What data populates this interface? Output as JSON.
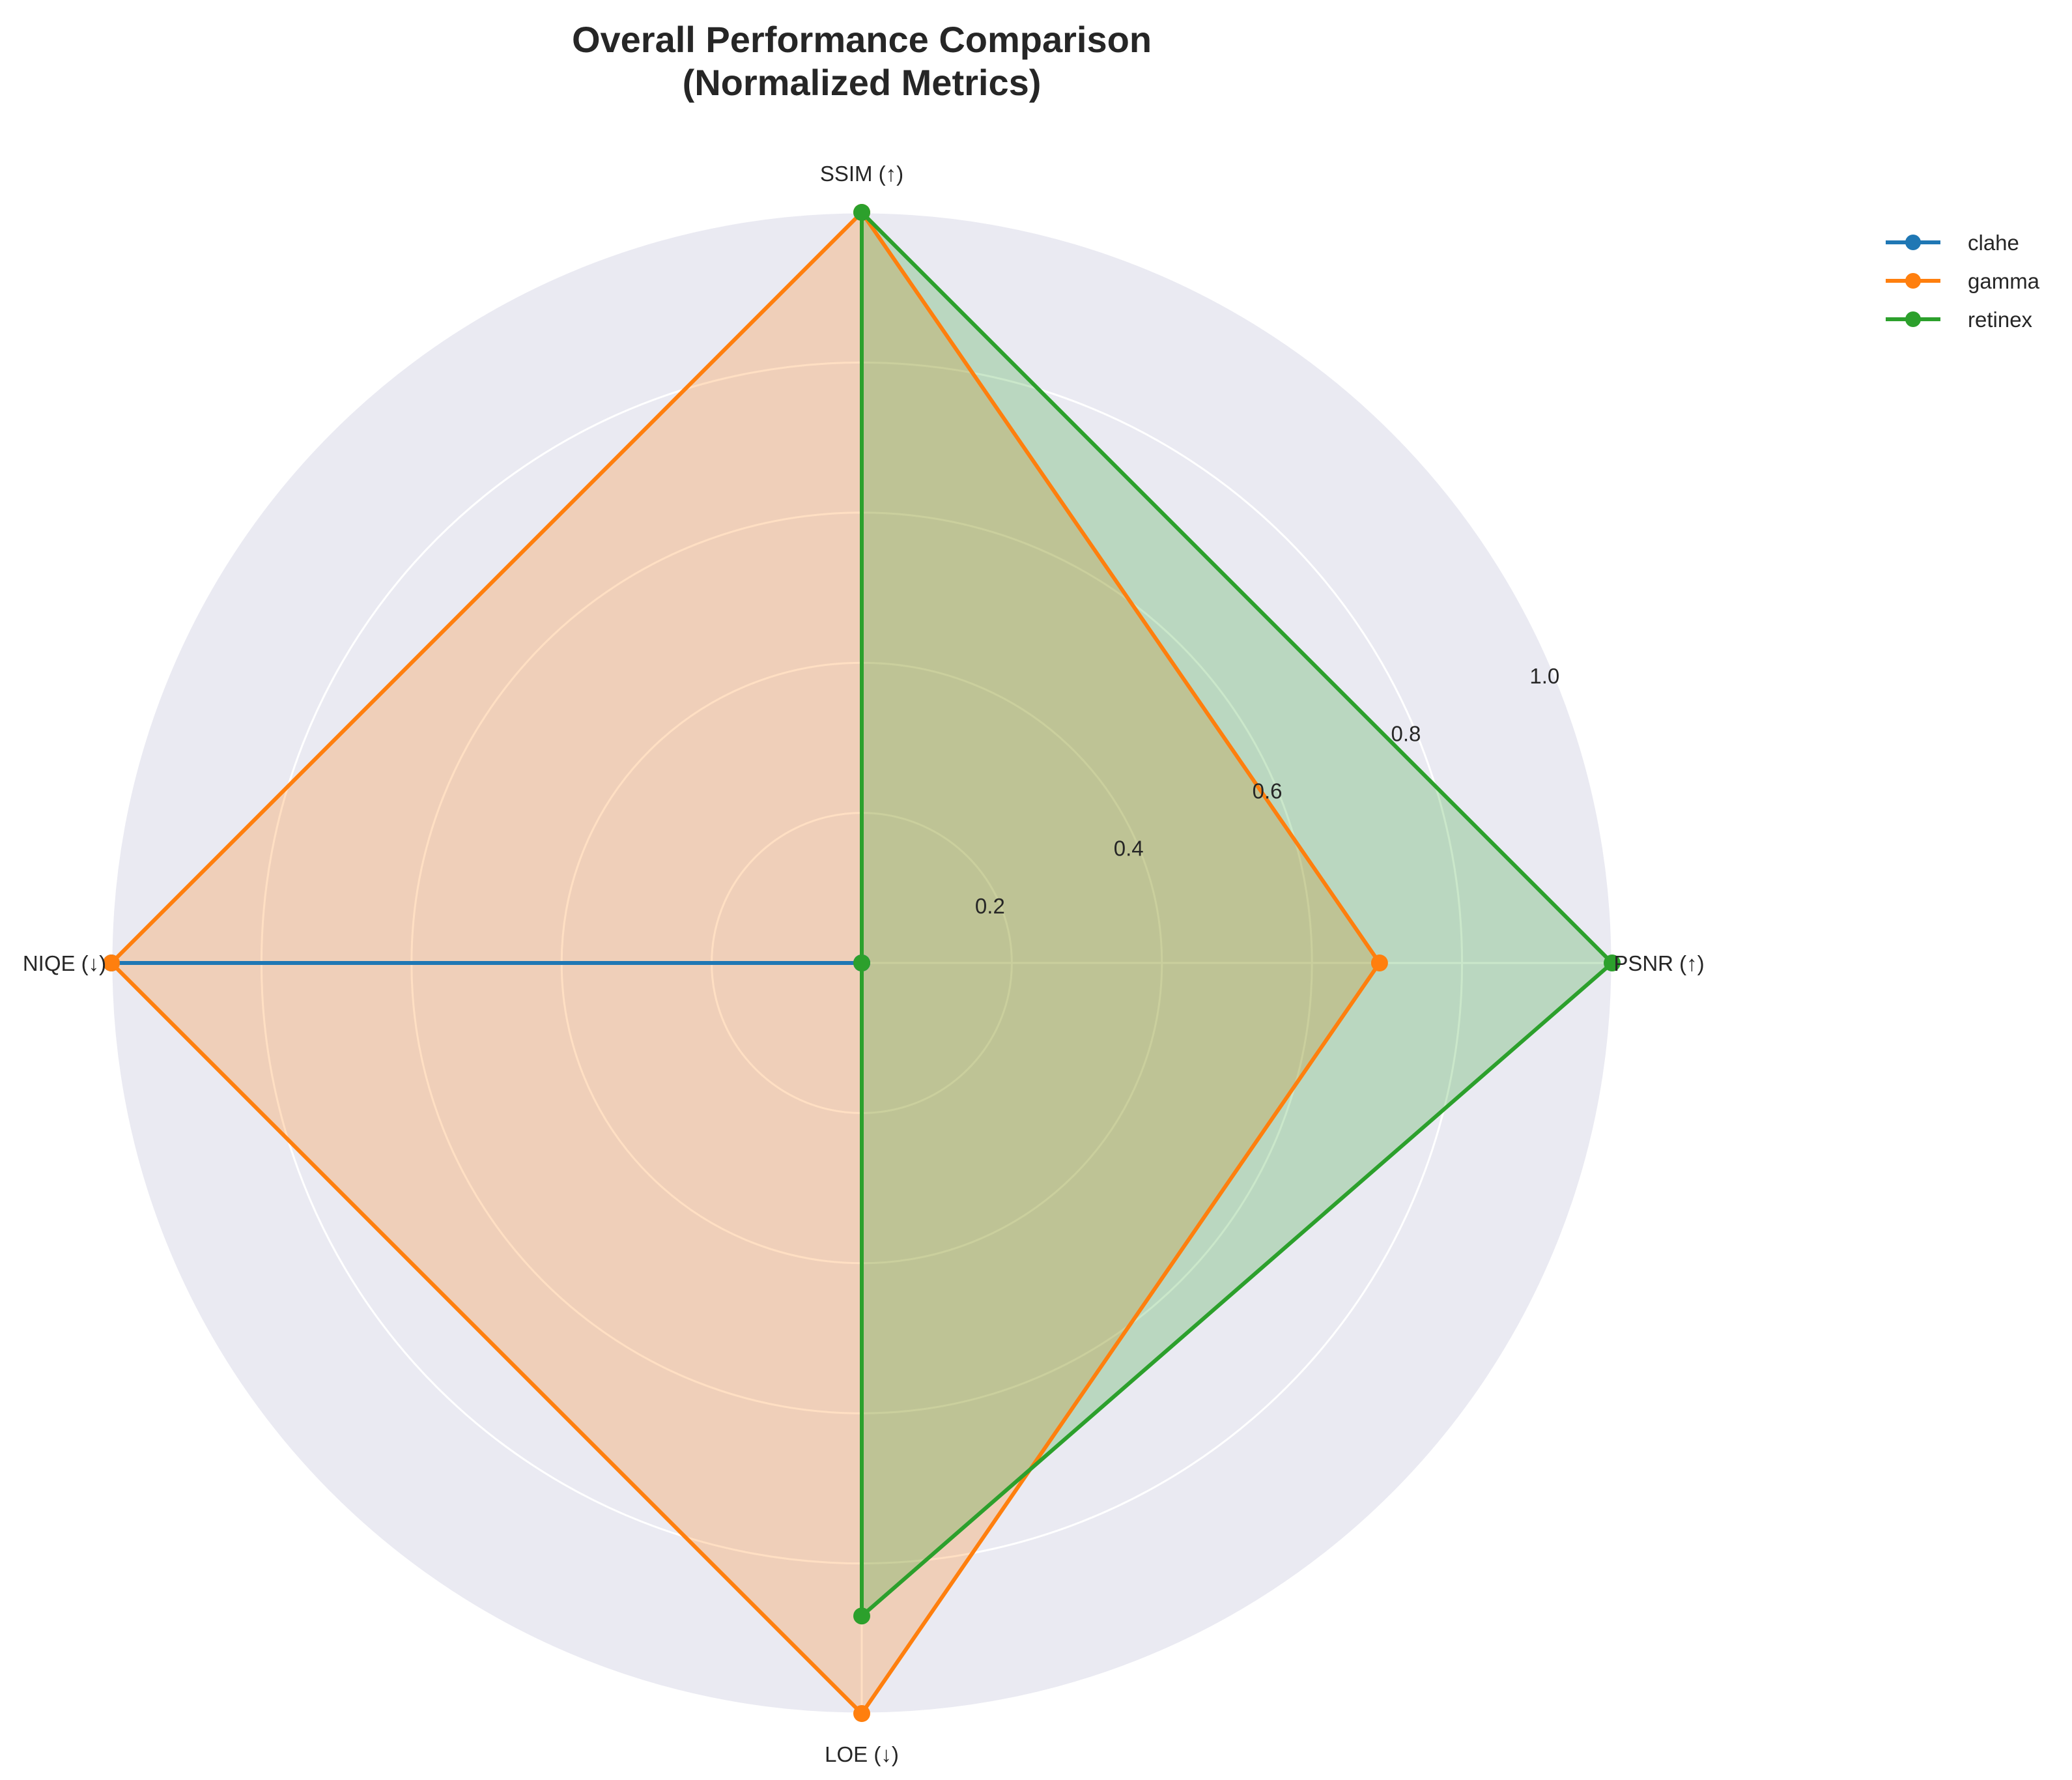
{
  "chart_data": {
    "type": "radar",
    "title": "Overall Performance Comparison\n(Normalized Metrics)",
    "axes": [
      "PSNR (↑)",
      "SSIM (↑)",
      "NIQE (↓)",
      "LOE (↓)"
    ],
    "rlim": [
      0,
      1.0
    ],
    "rticks": [
      0.2,
      0.4,
      0.6,
      0.8,
      1.0
    ],
    "rtick_labels": [
      "0.2",
      "0.4",
      "0.6",
      "0.8",
      "1.0"
    ],
    "grid": true,
    "legend_position": "upper-right-outside",
    "series": [
      {
        "name": "clahe",
        "color": "#1f77b4",
        "values": [
          0.0,
          0.0,
          1.0,
          0.0
        ],
        "filled": false
      },
      {
        "name": "gamma",
        "color": "#ff7f0e",
        "values": [
          0.69,
          1.0,
          1.0,
          1.0
        ],
        "filled": true
      },
      {
        "name": "retinex",
        "color": "#2ca02c",
        "values": [
          1.0,
          1.0,
          0.0,
          0.87
        ],
        "filled": true
      }
    ]
  }
}
